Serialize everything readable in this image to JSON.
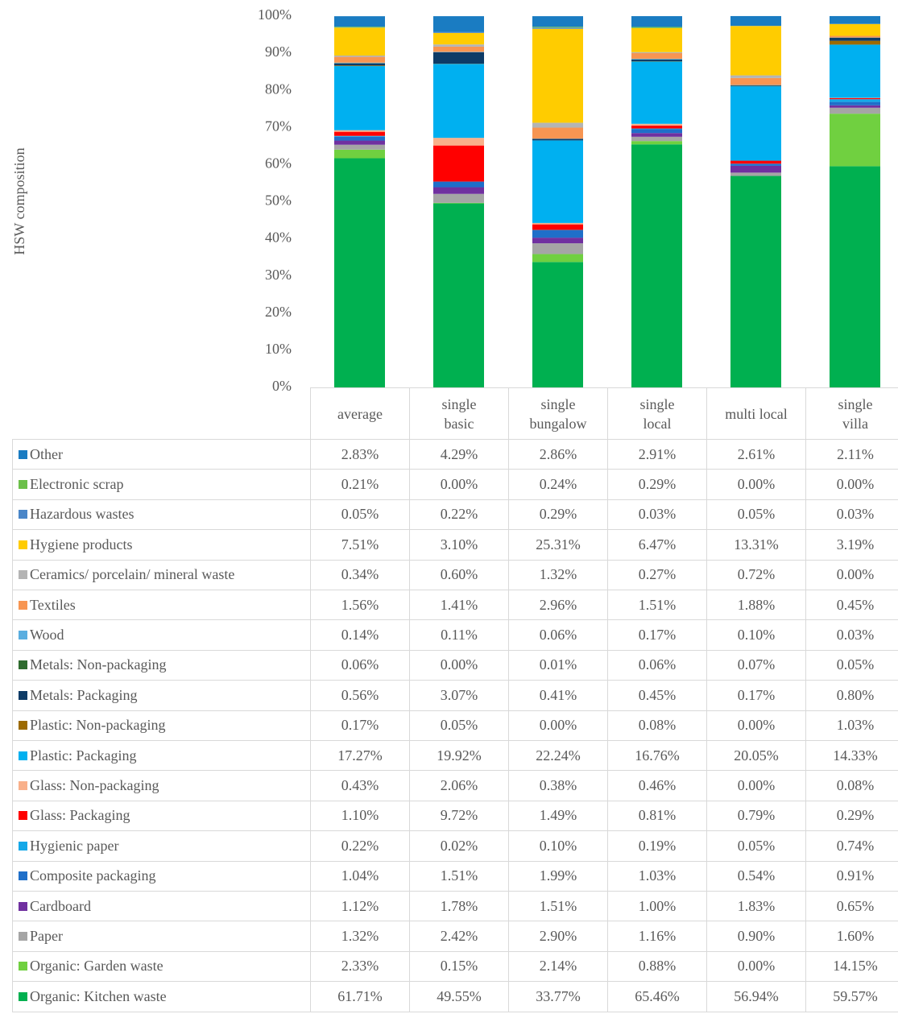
{
  "chart_data": {
    "type": "stacked_bar",
    "y_label": "HSW composition",
    "categories": [
      "average",
      "single basic",
      "single bungalow",
      "single local",
      "multi local",
      "single villa"
    ],
    "ylim": [
      0,
      100
    ],
    "yticks": [
      {
        "value": 0,
        "label": "0%"
      },
      {
        "value": 10,
        "label": "10%"
      },
      {
        "value": 20,
        "label": "20%"
      },
      {
        "value": 30,
        "label": "30%"
      },
      {
        "value": 40,
        "label": "40%"
      },
      {
        "value": 50,
        "label": "50%"
      },
      {
        "value": 60,
        "label": "60%"
      },
      {
        "value": 70,
        "label": "70%"
      },
      {
        "value": 80,
        "label": "80%"
      },
      {
        "value": 90,
        "label": "90%"
      },
      {
        "value": 100,
        "label": "100%"
      }
    ],
    "series": [
      {
        "name": "Other",
        "color": "#1a7cc2",
        "values": [
          2.83,
          4.29,
          2.86,
          2.91,
          2.61,
          2.11
        ],
        "value_labels": [
          "2.83%",
          "4.29%",
          "2.86%",
          "2.91%",
          "2.61%",
          "2.11%"
        ]
      },
      {
        "name": "Electronic scrap",
        "color": "#6cc04a",
        "values": [
          0.21,
          0.0,
          0.24,
          0.29,
          0.0,
          0.0
        ],
        "value_labels": [
          "0.21%",
          "0.00%",
          "0.24%",
          "0.29%",
          "0.00%",
          "0.00%"
        ]
      },
      {
        "name": "Hazardous wastes",
        "color": "#4a86c8",
        "values": [
          0.05,
          0.22,
          0.29,
          0.03,
          0.05,
          0.03
        ],
        "value_labels": [
          "0.05%",
          "0.22%",
          "0.29%",
          "0.03%",
          "0.05%",
          "0.03%"
        ]
      },
      {
        "name": "Hygiene products",
        "color": "#ffcc00",
        "values": [
          7.51,
          3.1,
          25.31,
          6.47,
          13.31,
          3.19
        ],
        "value_labels": [
          "7.51%",
          "3.10%",
          "25.31%",
          "6.47%",
          "13.31%",
          "3.19%"
        ]
      },
      {
        "name": "Ceramics/ porcelain/ mineral waste",
        "color": "#b4b4b4",
        "values": [
          0.34,
          0.6,
          1.32,
          0.27,
          0.72,
          0.0
        ],
        "value_labels": [
          "0.34%",
          "0.60%",
          "1.32%",
          "0.27%",
          "0.72%",
          "0.00%"
        ]
      },
      {
        "name": "Textiles",
        "color": "#f79552",
        "values": [
          1.56,
          1.41,
          2.96,
          1.51,
          1.88,
          0.45
        ],
        "value_labels": [
          "1.56%",
          "1.41%",
          "2.96%",
          "1.51%",
          "1.88%",
          "0.45%"
        ]
      },
      {
        "name": "Wood",
        "color": "#5aaee0",
        "values": [
          0.14,
          0.11,
          0.06,
          0.17,
          0.1,
          0.03
        ],
        "value_labels": [
          "0.14%",
          "0.11%",
          "0.06%",
          "0.17%",
          "0.10%",
          "0.03%"
        ]
      },
      {
        "name": "Metals: Non-packaging",
        "color": "#2e6b2e",
        "values": [
          0.06,
          0.0,
          0.01,
          0.06,
          0.07,
          0.05
        ],
        "value_labels": [
          "0.06%",
          "0.00%",
          "0.01%",
          "0.06%",
          "0.07%",
          "0.05%"
        ]
      },
      {
        "name": "Metals: Packaging",
        "color": "#0d3b66",
        "values": [
          0.56,
          3.07,
          0.41,
          0.45,
          0.17,
          0.8
        ],
        "value_labels": [
          "0.56%",
          "3.07%",
          "0.41%",
          "0.45%",
          "0.17%",
          "0.80%"
        ]
      },
      {
        "name": "Plastic: Non-packaging",
        "color": "#9c6a00",
        "values": [
          0.17,
          0.05,
          0.0,
          0.08,
          0.0,
          1.03
        ],
        "value_labels": [
          "0.17%",
          "0.05%",
          "0.00%",
          "0.08%",
          "0.00%",
          "1.03%"
        ]
      },
      {
        "name": "Plastic: Packaging",
        "color": "#00b0f0",
        "values": [
          17.27,
          19.92,
          22.24,
          16.76,
          20.05,
          14.33
        ],
        "value_labels": [
          "17.27%",
          "19.92%",
          "22.24%",
          "16.76%",
          "20.05%",
          "14.33%"
        ]
      },
      {
        "name": "Glass: Non-packaging",
        "color": "#f9b08a",
        "values": [
          0.43,
          2.06,
          0.38,
          0.46,
          0.0,
          0.08
        ],
        "value_labels": [
          "0.43%",
          "2.06%",
          "0.38%",
          "0.46%",
          "0.00%",
          "0.08%"
        ]
      },
      {
        "name": "Glass: Packaging",
        "color": "#ff0000",
        "values": [
          1.1,
          9.72,
          1.49,
          0.81,
          0.79,
          0.29
        ],
        "value_labels": [
          "1.10%",
          "9.72%",
          "1.49%",
          "0.81%",
          "0.79%",
          "0.29%"
        ]
      },
      {
        "name": "Hygienic paper",
        "color": "#14a8e8",
        "values": [
          0.22,
          0.02,
          0.1,
          0.19,
          0.05,
          0.74
        ],
        "value_labels": [
          "0.22%",
          "0.02%",
          "0.10%",
          "0.19%",
          "0.05%",
          "0.74%"
        ]
      },
      {
        "name": "Composite packaging",
        "color": "#1f6fc9",
        "values": [
          1.04,
          1.51,
          1.99,
          1.03,
          0.54,
          0.91
        ],
        "value_labels": [
          "1.04%",
          "1.51%",
          "1.99%",
          "1.03%",
          "0.54%",
          "0.91%"
        ]
      },
      {
        "name": "Cardboard",
        "color": "#7030a0",
        "values": [
          1.12,
          1.78,
          1.51,
          1.0,
          1.83,
          0.65
        ],
        "value_labels": [
          "1.12%",
          "1.78%",
          "1.51%",
          "1.00%",
          "1.83%",
          "0.65%"
        ]
      },
      {
        "name": "Paper",
        "color": "#a5a5a5",
        "values": [
          1.32,
          2.42,
          2.9,
          1.16,
          0.9,
          1.6
        ],
        "value_labels": [
          "1.32%",
          "2.42%",
          "2.90%",
          "1.16%",
          "0.90%",
          "1.60%"
        ]
      },
      {
        "name": "Organic: Garden waste",
        "color": "#70d040",
        "values": [
          2.33,
          0.15,
          2.14,
          0.88,
          0.0,
          14.15
        ],
        "value_labels": [
          "2.33%",
          "0.15%",
          "2.14%",
          "0.88%",
          "0.00%",
          "14.15%"
        ]
      },
      {
        "name": "Organic: Kitchen waste",
        "color": "#00b050",
        "values": [
          61.71,
          49.55,
          33.77,
          65.46,
          56.94,
          59.57
        ],
        "value_labels": [
          "61.71%",
          "49.55%",
          "33.77%",
          "65.46%",
          "56.94%",
          "59.57%"
        ]
      }
    ]
  }
}
